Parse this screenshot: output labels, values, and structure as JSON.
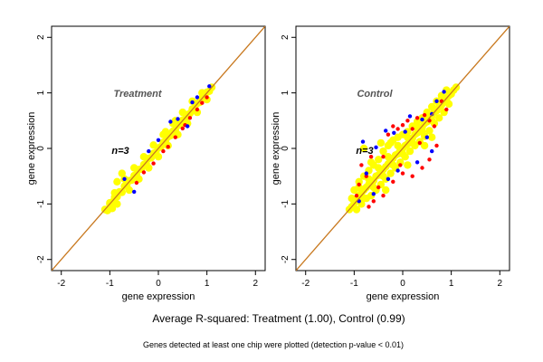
{
  "summary_text": "Average R-squared: Treatment (1.00), Control (0.99)",
  "footnote_text": "Genes detected at least one chip were plotted (detection p-value < 0.01)",
  "colors": {
    "diagonal": "#c8781e",
    "bulk": "#ffff00",
    "red": "#ff0000",
    "blue": "#0000ff",
    "frame": "#000000"
  },
  "chart_data": [
    {
      "type": "scatter",
      "title": "Treatment",
      "annotation": "n=3",
      "xlabel": "gene expression",
      "ylabel": "gene expression",
      "xlim": [
        -2.2,
        2.2
      ],
      "ylim": [
        -2.2,
        2.2
      ],
      "xticks": [
        "-2",
        "-1",
        "0",
        "1",
        "2"
      ],
      "yticks": [
        "-2",
        "-1",
        "0",
        "1",
        "2"
      ],
      "tick_values": [
        -2,
        -1,
        0,
        1,
        2
      ],
      "reference_line": {
        "slope": 1,
        "intercept": 0
      },
      "grid": false,
      "series": [
        {
          "color": "red",
          "points": [
            [
              0.2,
              0.03
            ],
            [
              0.35,
              0.2
            ],
            [
              0.5,
              0.36
            ],
            [
              0.65,
              0.55
            ],
            [
              0.8,
              0.7
            ],
            [
              0.9,
              0.82
            ],
            [
              1.0,
              0.92
            ],
            [
              0.55,
              0.42
            ],
            [
              -0.1,
              -0.27
            ],
            [
              -0.45,
              -0.62
            ],
            [
              0.1,
              -0.05
            ],
            [
              -0.3,
              -0.43
            ]
          ]
        },
        {
          "color": "blue",
          "points": [
            [
              -0.5,
              -0.78
            ],
            [
              0.25,
              0.48
            ],
            [
              0.6,
              0.4
            ],
            [
              1.05,
              1.12
            ],
            [
              0.8,
              0.92
            ],
            [
              0.4,
              0.53
            ],
            [
              -0.2,
              -0.05
            ],
            [
              0.0,
              0.15
            ],
            [
              0.7,
              0.83
            ],
            [
              -0.7,
              -0.55
            ]
          ]
        },
        {
          "color": "yellow",
          "points": [
            [
              -1.1,
              -1.1
            ],
            [
              -1.05,
              -1.12
            ],
            [
              -1.0,
              -0.98
            ],
            [
              -0.95,
              -0.97
            ],
            [
              -0.9,
              -0.88
            ],
            [
              -0.85,
              -0.87
            ],
            [
              -0.8,
              -0.78
            ],
            [
              -0.75,
              -0.79
            ],
            [
              -0.7,
              -0.68
            ],
            [
              -0.65,
              -0.66
            ],
            [
              -0.6,
              -0.58
            ],
            [
              -0.55,
              -0.57
            ],
            [
              -0.5,
              -0.49
            ],
            [
              -0.45,
              -0.47
            ],
            [
              -0.4,
              -0.38
            ],
            [
              -0.35,
              -0.37
            ],
            [
              -0.3,
              -0.29
            ],
            [
              -0.25,
              -0.27
            ],
            [
              -0.2,
              -0.18
            ],
            [
              -0.15,
              -0.17
            ],
            [
              -0.1,
              -0.09
            ],
            [
              -0.05,
              -0.07
            ],
            [
              0.0,
              0.01
            ],
            [
              0.05,
              0.03
            ],
            [
              0.1,
              0.11
            ],
            [
              0.15,
              0.13
            ],
            [
              0.2,
              0.21
            ],
            [
              0.25,
              0.23
            ],
            [
              0.3,
              0.31
            ],
            [
              0.35,
              0.33
            ],
            [
              0.4,
              0.41
            ],
            [
              0.45,
              0.43
            ],
            [
              0.5,
              0.51
            ],
            [
              0.55,
              0.53
            ],
            [
              0.6,
              0.61
            ],
            [
              0.65,
              0.63
            ],
            [
              0.7,
              0.71
            ],
            [
              0.75,
              0.73
            ],
            [
              0.8,
              0.81
            ],
            [
              0.85,
              0.83
            ],
            [
              0.9,
              0.91
            ],
            [
              0.95,
              0.93
            ],
            [
              1.0,
              1.01
            ],
            [
              1.05,
              1.03
            ],
            [
              1.1,
              1.1
            ],
            [
              -0.9,
              -0.8
            ],
            [
              -0.7,
              -0.55
            ],
            [
              -0.5,
              -0.35
            ],
            [
              -0.3,
              -0.15
            ],
            [
              -0.1,
              0.06
            ],
            [
              0.1,
              0.25
            ],
            [
              0.3,
              0.45
            ],
            [
              0.5,
              0.65
            ],
            [
              0.7,
              0.85
            ],
            [
              0.9,
              1.0
            ],
            [
              -0.85,
              -1.0
            ],
            [
              -0.6,
              -0.75
            ],
            [
              -0.4,
              -0.55
            ],
            [
              -0.2,
              -0.35
            ],
            [
              0.0,
              -0.15
            ],
            [
              0.2,
              0.05
            ],
            [
              0.4,
              0.25
            ],
            [
              0.6,
              0.45
            ],
            [
              0.8,
              0.65
            ],
            [
              1.0,
              0.88
            ],
            [
              -0.85,
              -0.6
            ],
            [
              -0.75,
              -0.45
            ],
            [
              -1.0,
              -1.0
            ],
            [
              -0.95,
              -1.08
            ],
            [
              0.15,
              0.3
            ],
            [
              0.35,
              0.5
            ]
          ]
        }
      ]
    },
    {
      "type": "scatter",
      "title": "Control",
      "annotation": "n=3",
      "xlabel": "gene expression",
      "ylabel": "gene expression",
      "xlim": [
        -2.2,
        2.2
      ],
      "ylim": [
        -2.2,
        2.2
      ],
      "xticks": [
        "-2",
        "-1",
        "0",
        "1",
        "2"
      ],
      "yticks": [
        "-2",
        "-1",
        "0",
        "1",
        "2"
      ],
      "tick_values": [
        -2,
        -1,
        0,
        1,
        2
      ],
      "reference_line": {
        "slope": 1,
        "intercept": 0
      },
      "grid": false,
      "series": [
        {
          "color": "red",
          "points": [
            [
              -0.9,
              -0.65
            ],
            [
              -0.75,
              -0.5
            ],
            [
              -0.6,
              -0.95
            ],
            [
              -0.5,
              -0.7
            ],
            [
              -0.4,
              -0.15
            ],
            [
              -0.3,
              0.25
            ],
            [
              -0.2,
              0.4
            ],
            [
              -0.1,
              0.35
            ],
            [
              0.0,
              0.42
            ],
            [
              0.1,
              0.5
            ],
            [
              0.2,
              0.35
            ],
            [
              0.3,
              0.55
            ],
            [
              0.45,
              0.6
            ],
            [
              0.55,
              0.5
            ],
            [
              0.65,
              0.4
            ],
            [
              0.7,
              0.05
            ],
            [
              0.55,
              -0.2
            ],
            [
              0.4,
              -0.35
            ],
            [
              0.2,
              -0.5
            ],
            [
              0.0,
              -0.45
            ],
            [
              -0.2,
              -0.6
            ],
            [
              -0.4,
              -0.85
            ],
            [
              -0.7,
              -1.05
            ],
            [
              0.8,
              0.85
            ],
            [
              0.9,
              0.7
            ],
            [
              -0.85,
              -0.3
            ],
            [
              -0.65,
              -0.15
            ],
            [
              -0.95,
              -0.85
            ],
            [
              0.35,
              0.1
            ],
            [
              -0.05,
              -0.3
            ]
          ]
        },
        {
          "color": "blue",
          "points": [
            [
              -0.82,
              0.12
            ],
            [
              -0.55,
              0.02
            ],
            [
              -0.35,
              0.32
            ],
            [
              -0.18,
              0.28
            ],
            [
              0.05,
              0.3
            ],
            [
              0.15,
              0.58
            ],
            [
              0.4,
              0.52
            ],
            [
              0.6,
              0.62
            ],
            [
              0.5,
              0.2
            ],
            [
              0.6,
              -0.05
            ],
            [
              0.3,
              -0.25
            ],
            [
              -0.1,
              -0.4
            ],
            [
              -0.3,
              -0.55
            ],
            [
              -0.6,
              -0.82
            ],
            [
              -0.9,
              -0.95
            ],
            [
              0.85,
              1.02
            ],
            [
              0.7,
              0.85
            ],
            [
              -0.75,
              -0.45
            ]
          ]
        },
        {
          "color": "yellow",
          "points": [
            [
              -1.1,
              -1.1
            ],
            [
              -1.05,
              -1.05
            ],
            [
              -1.0,
              -0.98
            ],
            [
              -0.95,
              -0.92
            ],
            [
              -0.9,
              -0.85
            ],
            [
              -0.85,
              -0.8
            ],
            [
              -0.8,
              -0.75
            ],
            [
              -0.75,
              -0.7
            ],
            [
              -0.7,
              -0.65
            ],
            [
              -0.65,
              -0.6
            ],
            [
              -0.6,
              -0.58
            ],
            [
              -0.55,
              -0.5
            ],
            [
              -0.5,
              -0.48
            ],
            [
              -0.45,
              -0.42
            ],
            [
              -0.4,
              -0.38
            ],
            [
              -0.35,
              -0.33
            ],
            [
              -0.3,
              -0.28
            ],
            [
              -0.25,
              -0.22
            ],
            [
              -0.2,
              -0.18
            ],
            [
              -0.15,
              -0.12
            ],
            [
              -0.1,
              -0.1
            ],
            [
              -0.05,
              -0.02
            ],
            [
              0.0,
              0.0
            ],
            [
              0.05,
              0.05
            ],
            [
              0.1,
              0.08
            ],
            [
              0.15,
              0.15
            ],
            [
              0.2,
              0.18
            ],
            [
              0.25,
              0.25
            ],
            [
              0.3,
              0.28
            ],
            [
              0.35,
              0.35
            ],
            [
              0.4,
              0.38
            ],
            [
              0.45,
              0.45
            ],
            [
              0.5,
              0.48
            ],
            [
              0.55,
              0.55
            ],
            [
              0.6,
              0.58
            ],
            [
              0.65,
              0.65
            ],
            [
              0.7,
              0.68
            ],
            [
              0.75,
              0.75
            ],
            [
              0.8,
              0.78
            ],
            [
              0.85,
              0.85
            ],
            [
              0.9,
              0.88
            ],
            [
              0.95,
              0.95
            ],
            [
              1.0,
              0.98
            ],
            [
              1.05,
              1.05
            ],
            [
              1.1,
              1.1
            ],
            [
              -1.0,
              -0.75
            ],
            [
              -0.9,
              -0.6
            ],
            [
              -0.8,
              -0.5
            ],
            [
              -0.7,
              -0.4
            ],
            [
              -0.6,
              -0.3
            ],
            [
              -0.5,
              -0.2
            ],
            [
              -0.4,
              -0.05
            ],
            [
              -0.3,
              0.05
            ],
            [
              -0.2,
              0.15
            ],
            [
              -0.1,
              0.2
            ],
            [
              0.0,
              0.25
            ],
            [
              0.1,
              0.3
            ],
            [
              0.2,
              0.4
            ],
            [
              0.3,
              0.48
            ],
            [
              0.4,
              0.55
            ],
            [
              0.5,
              0.65
            ],
            [
              0.6,
              0.75
            ],
            [
              0.7,
              0.85
            ],
            [
              0.8,
              0.95
            ],
            [
              0.9,
              1.05
            ],
            [
              -1.05,
              -0.9
            ],
            [
              -0.95,
              -1.1
            ],
            [
              -0.85,
              -1.0
            ],
            [
              -0.75,
              -0.9
            ],
            [
              -0.65,
              -0.85
            ],
            [
              -0.55,
              -0.75
            ],
            [
              -0.45,
              -0.65
            ],
            [
              -0.35,
              -0.55
            ],
            [
              -0.25,
              -0.45
            ],
            [
              -0.15,
              -0.35
            ],
            [
              -0.05,
              -0.25
            ],
            [
              0.05,
              -0.15
            ],
            [
              0.15,
              -0.05
            ],
            [
              0.25,
              0.05
            ],
            [
              0.35,
              0.12
            ],
            [
              0.45,
              0.22
            ],
            [
              0.55,
              0.32
            ],
            [
              0.65,
              0.45
            ],
            [
              0.75,
              0.55
            ],
            [
              0.85,
              0.65
            ],
            [
              0.95,
              0.8
            ],
            [
              -0.9,
              -0.7
            ],
            [
              -0.7,
              -0.55
            ],
            [
              -0.5,
              -0.35
            ],
            [
              -0.3,
              -0.15
            ],
            [
              -0.1,
              0.05
            ],
            [
              0.1,
              0.2
            ],
            [
              0.3,
              0.38
            ],
            [
              -0.8,
              -0.9
            ],
            [
              -0.6,
              -0.7
            ],
            [
              -0.4,
              -0.5
            ],
            [
              -0.2,
              -0.3
            ],
            [
              0.0,
              -0.1
            ],
            [
              0.2,
              0.1
            ],
            [
              0.4,
              0.3
            ],
            [
              0.6,
              0.5
            ],
            [
              -0.8,
              0.0
            ],
            [
              -0.65,
              -0.25
            ],
            [
              -0.45,
              0.1
            ],
            [
              -0.25,
              0.1
            ],
            [
              0.45,
              0.05
            ],
            [
              0.6,
              0.2
            ],
            [
              0.1,
              -0.3
            ],
            [
              -0.35,
              -0.75
            ]
          ]
        }
      ]
    }
  ]
}
